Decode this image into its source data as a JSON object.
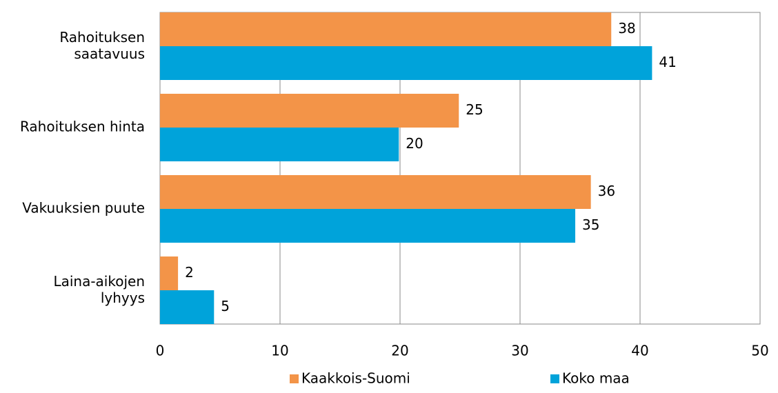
{
  "chart_data": {
    "type": "hbar",
    "categories": [
      "Rahoituksen\nsaatavuus",
      "Rahoituksen hinta",
      "Vakuuksien puute",
      "Laina-aikojen\nlyhyys"
    ],
    "series": [
      {
        "name": "Kaakkois-Suomi",
        "color": "#f39448",
        "values": [
          37.6,
          24.9,
          35.9,
          1.5
        ],
        "value_labels": [
          "38",
          "25",
          "36",
          "2"
        ]
      },
      {
        "name": "Koko maa",
        "color": "#00a3da",
        "values": [
          41,
          19.9,
          34.6,
          4.5
        ],
        "value_labels": [
          "41",
          "20",
          "35",
          "5"
        ]
      }
    ],
    "xlim": [
      0,
      50
    ],
    "xticks": [
      0,
      10,
      20,
      30,
      40,
      50
    ],
    "grid": true,
    "legend": "bottom"
  }
}
